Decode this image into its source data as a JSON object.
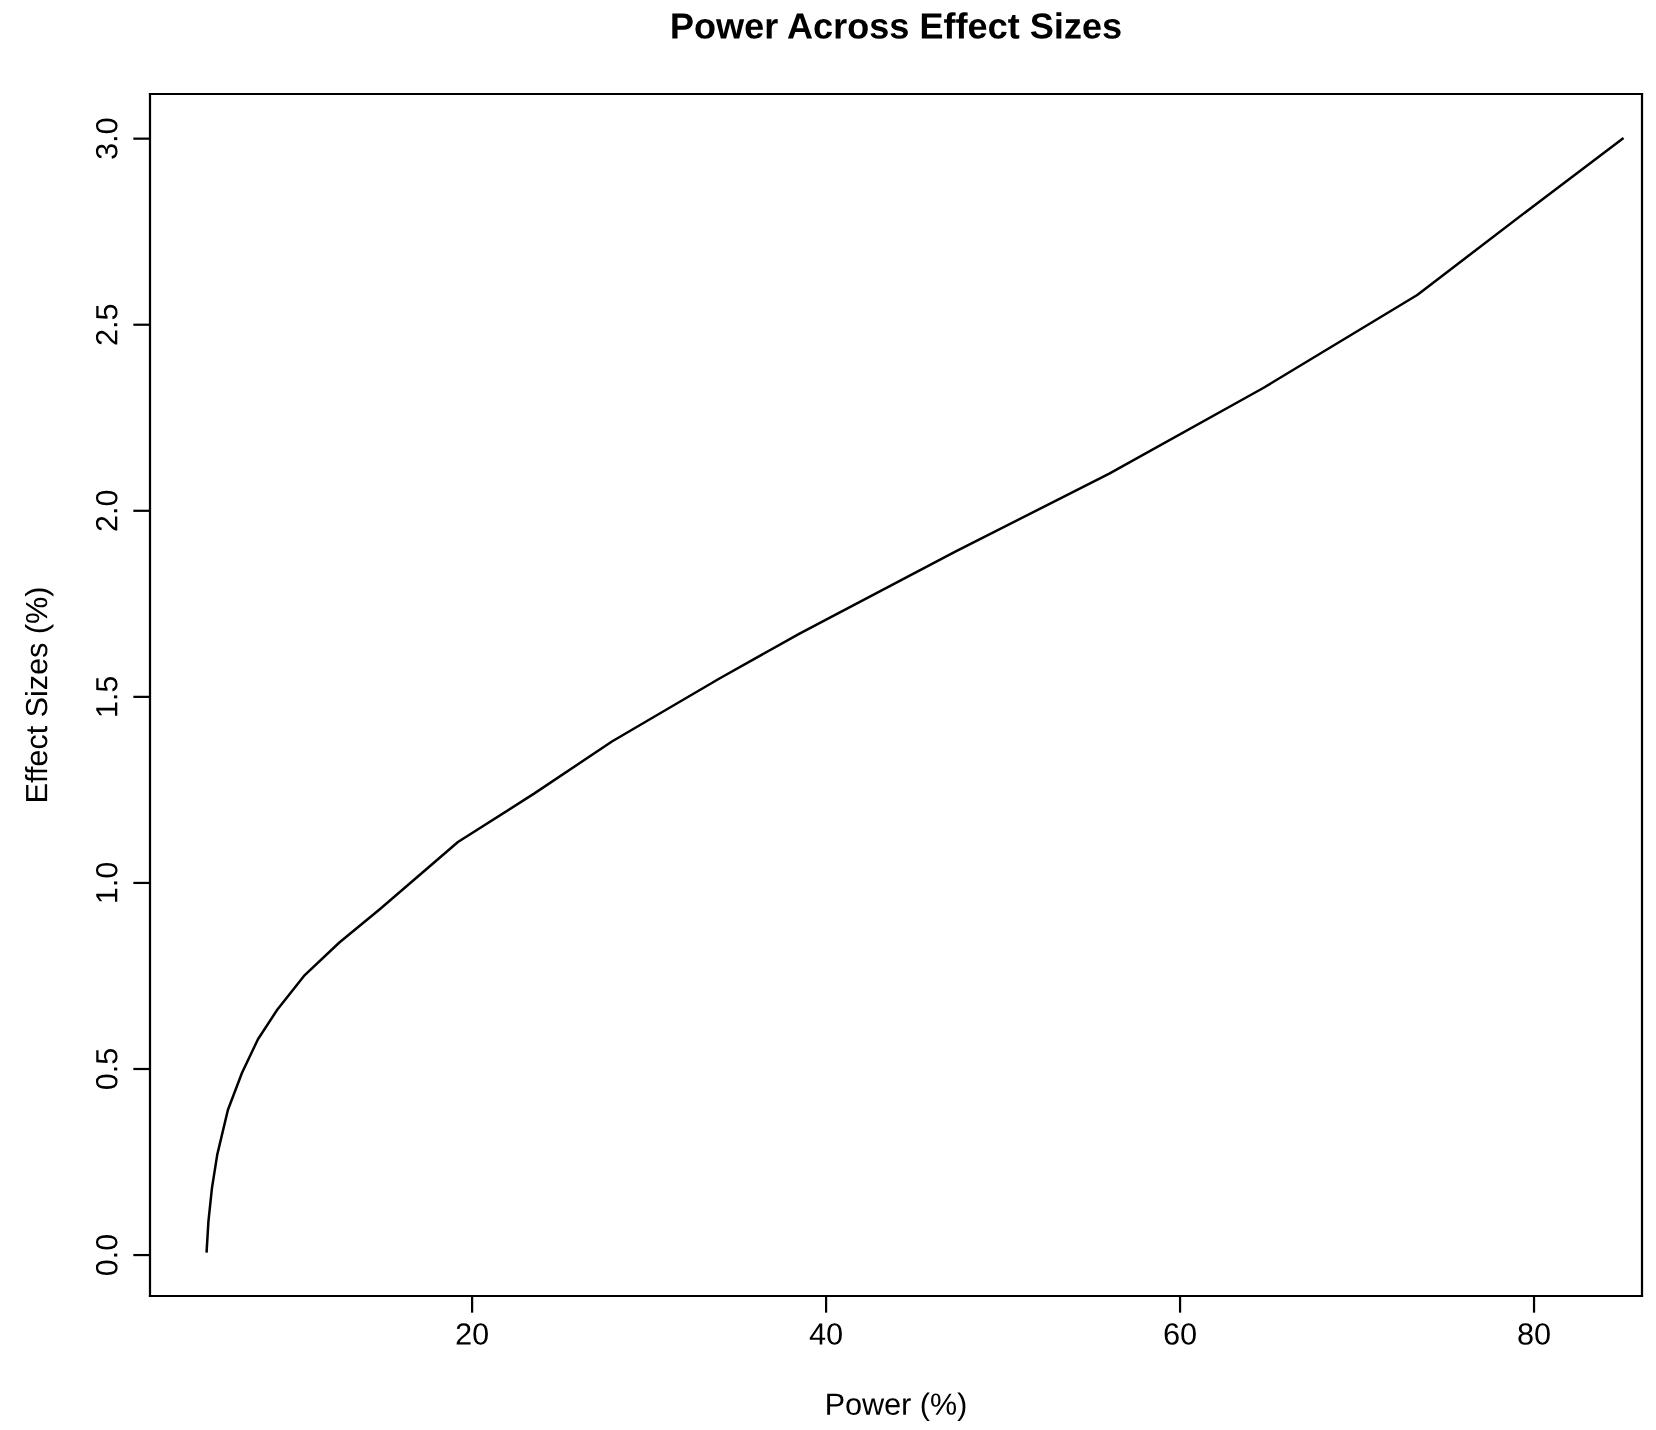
{
  "chart_data": {
    "type": "line",
    "title": "Power Across Effect Sizes",
    "xlabel": "Power (%)",
    "ylabel": "Effect Sizes (%)",
    "series": [
      {
        "color": "#000000",
        "x": [
          5,
          5.1,
          5.3,
          5.6,
          6.2,
          7,
          7.9,
          9,
          10.5,
          12.5,
          14.8,
          17,
          19.2,
          23.5,
          27.9,
          34,
          38.5,
          47.3,
          56,
          64.7,
          73.4,
          80,
          85
        ],
        "values": [
          0.01,
          0.09,
          0.18,
          0.27,
          0.39,
          0.49,
          0.58,
          0.66,
          0.75,
          0.84,
          0.93,
          1.02,
          1.11,
          1.24,
          1.38,
          1.55,
          1.67,
          1.89,
          2.1,
          2.33,
          2.58,
          2.82,
          3.0
        ]
      }
    ],
    "xlim": [
      1.8,
      86.1
    ],
    "ylim": [
      -0.11,
      3.12
    ],
    "xticks": [
      20,
      40,
      60,
      80
    ],
    "yticks": [
      {
        "value": 0,
        "label": "0.0"
      },
      {
        "value": 0.5,
        "label": "0.5"
      },
      {
        "value": 1,
        "label": "1.0"
      },
      {
        "value": 1.5,
        "label": "1.5"
      },
      {
        "value": 2,
        "label": "2.0"
      },
      {
        "value": 2.5,
        "label": "2.5"
      },
      {
        "value": 3,
        "label": "3.0"
      }
    ],
    "grid": false,
    "legend": false,
    "marker": "none",
    "line_style": "solid"
  }
}
